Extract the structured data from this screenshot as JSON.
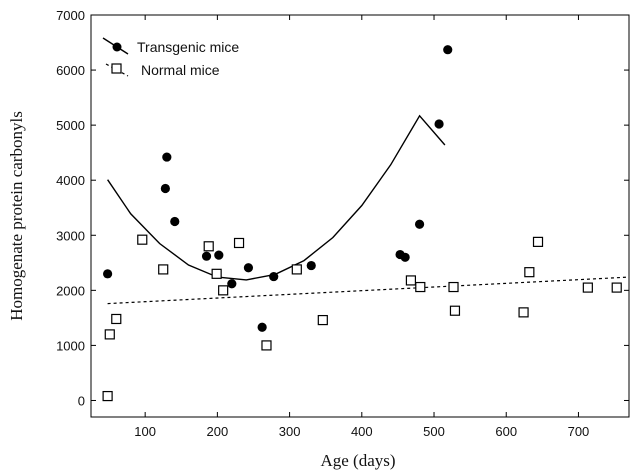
{
  "chart_data": {
    "type": "scatter",
    "xlabel": "Age (days)",
    "ylabel": "Homogenate protein carbonyls",
    "xlim": [
      25,
      770
    ],
    "ylim": [
      -300,
      7000
    ],
    "xticks": [
      100,
      200,
      300,
      400,
      500,
      600,
      700
    ],
    "yticks": [
      0,
      1000,
      2000,
      3000,
      4000,
      5000,
      6000,
      7000
    ],
    "legend_position": "top-left",
    "grid": false,
    "series": [
      {
        "name": "Transgenic mice",
        "marker": "filled-circle",
        "points": [
          {
            "x": 48,
            "y": 2300
          },
          {
            "x": 128,
            "y": 3850
          },
          {
            "x": 130,
            "y": 4420
          },
          {
            "x": 141,
            "y": 3250
          },
          {
            "x": 185,
            "y": 2620
          },
          {
            "x": 202,
            "y": 2640
          },
          {
            "x": 220,
            "y": 2120
          },
          {
            "x": 243,
            "y": 2410
          },
          {
            "x": 262,
            "y": 1330
          },
          {
            "x": 278,
            "y": 2250
          },
          {
            "x": 330,
            "y": 2450
          },
          {
            "x": 453,
            "y": 2650
          },
          {
            "x": 460,
            "y": 2600
          },
          {
            "x": 480,
            "y": 3200
          },
          {
            "x": 507,
            "y": 5020
          },
          {
            "x": 519,
            "y": 6370
          }
        ],
        "fit": {
          "style": "solid",
          "x": [
            48,
            80,
            120,
            160,
            200,
            240,
            280,
            320,
            360,
            400,
            440,
            480,
            515
          ],
          "y": [
            4010,
            3390,
            2850,
            2460,
            2240,
            2190,
            2290,
            2540,
            2960,
            3540,
            4280,
            5170,
            4640
          ]
        }
      },
      {
        "name": "Normal mice",
        "marker": "open-square",
        "points": [
          {
            "x": 48,
            "y": 80
          },
          {
            "x": 51,
            "y": 1200
          },
          {
            "x": 60,
            "y": 1480
          },
          {
            "x": 96,
            "y": 2920
          },
          {
            "x": 125,
            "y": 2380
          },
          {
            "x": 188,
            "y": 2800
          },
          {
            "x": 199,
            "y": 2300
          },
          {
            "x": 208,
            "y": 2000
          },
          {
            "x": 230,
            "y": 2860
          },
          {
            "x": 268,
            "y": 1000
          },
          {
            "x": 310,
            "y": 2380
          },
          {
            "x": 346,
            "y": 1460
          },
          {
            "x": 468,
            "y": 2180
          },
          {
            "x": 481,
            "y": 2060
          },
          {
            "x": 527,
            "y": 2060
          },
          {
            "x": 529,
            "y": 1630
          },
          {
            "x": 624,
            "y": 1600
          },
          {
            "x": 632,
            "y": 2330
          },
          {
            "x": 644,
            "y": 2880
          },
          {
            "x": 713,
            "y": 2050
          },
          {
            "x": 753,
            "y": 2050
          }
        ],
        "fit": {
          "style": "dashed",
          "x": [
            48,
            770
          ],
          "y": [
            1760,
            2240
          ]
        }
      }
    ]
  }
}
